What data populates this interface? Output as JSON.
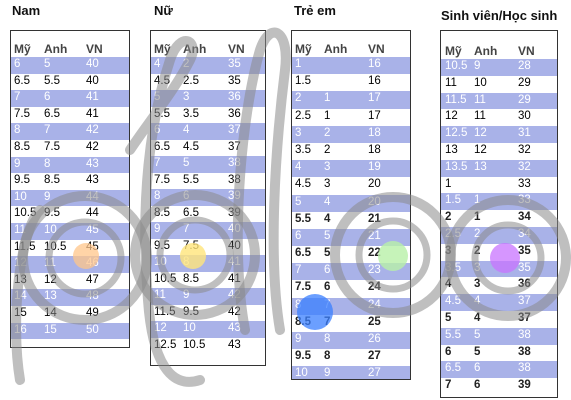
{
  "panels": [
    {
      "title": "Nam",
      "headers": [
        "Mỹ",
        "Anh",
        "VN"
      ],
      "rows": [
        [
          "6",
          "5",
          "40"
        ],
        [
          "6.5",
          "5.5",
          "40"
        ],
        [
          "7",
          "6",
          "41"
        ],
        [
          "7.5",
          "6.5",
          "41"
        ],
        [
          "8",
          "7",
          "42"
        ],
        [
          "8.5",
          "7.5",
          "42"
        ],
        [
          "9",
          "8",
          "43"
        ],
        [
          "9.5",
          "8.5",
          "43"
        ],
        [
          "10",
          "9",
          "44"
        ],
        [
          "10.5",
          "9.5",
          "44"
        ],
        [
          "11",
          "10",
          "45"
        ],
        [
          "11.5",
          "10.5",
          "45"
        ],
        [
          "12",
          "11",
          "46"
        ],
        [
          "13",
          "12",
          "47"
        ],
        [
          "14",
          "13",
          "48"
        ],
        [
          "15",
          "14",
          "49"
        ],
        [
          "16",
          "15",
          "50"
        ]
      ]
    },
    {
      "title": "Nữ",
      "headers": [
        "Mỹ",
        "Anh",
        "VN"
      ],
      "rows": [
        [
          "4",
          "2",
          "35"
        ],
        [
          "4.5",
          "2.5",
          "35"
        ],
        [
          "5",
          "3",
          "36"
        ],
        [
          "5.5",
          "3.5",
          "36"
        ],
        [
          "6",
          "4",
          "37"
        ],
        [
          "6.5",
          "4.5",
          "37"
        ],
        [
          "7",
          "5",
          "38"
        ],
        [
          "7.5",
          "5.5",
          "38"
        ],
        [
          "8",
          "6",
          "39"
        ],
        [
          "8.5",
          "6.5",
          "39"
        ],
        [
          "9",
          "7",
          "40"
        ],
        [
          "9.5",
          "7.5",
          "40"
        ],
        [
          "10",
          "8",
          "41"
        ],
        [
          "10.5",
          "8.5",
          "41"
        ],
        [
          "11",
          "9",
          "42"
        ],
        [
          "11.5",
          "9.5",
          "42"
        ],
        [
          "12",
          "10",
          "43"
        ],
        [
          "12.5",
          "10.5",
          "43"
        ]
      ]
    },
    {
      "title": "Trẻ em",
      "headers": [
        "Mỹ",
        "Anh",
        "VN"
      ],
      "rows": [
        [
          "1",
          "",
          "16"
        ],
        [
          "1.5",
          "",
          "16"
        ],
        [
          "2",
          "1",
          "17"
        ],
        [
          "2.5",
          "1",
          "17"
        ],
        [
          "3",
          "2",
          "18"
        ],
        [
          "3.5",
          "2",
          "18"
        ],
        [
          "4",
          "3",
          "19"
        ],
        [
          "4.5",
          "3",
          "20"
        ],
        [
          "5",
          "4",
          "20"
        ],
        [
          "5.5",
          "4",
          "21"
        ],
        [
          "6",
          "5",
          "21"
        ],
        [
          "6.5",
          "5",
          "22"
        ],
        [
          "7",
          "6",
          "23"
        ],
        [
          "7.5",
          "6",
          "24"
        ],
        [
          "8",
          "7",
          "24"
        ],
        [
          "8.5",
          "7",
          "25"
        ],
        [
          "9",
          "8",
          "26"
        ],
        [
          "9.5",
          "8",
          "27"
        ],
        [
          "10",
          "9",
          "27"
        ]
      ]
    },
    {
      "title": "Sinh viên/Học sinh",
      "headers": [
        "Mỹ",
        "Anh",
        "VN"
      ],
      "rows": [
        [
          "10.5",
          "9",
          "28"
        ],
        [
          "11",
          "10",
          "29"
        ],
        [
          "11.5",
          "11",
          "29"
        ],
        [
          "12",
          "11",
          "30"
        ],
        [
          "12.5",
          "12",
          "31"
        ],
        [
          "13",
          "12",
          "32"
        ],
        [
          "13.5",
          "13",
          "32"
        ],
        [
          "1",
          "",
          "33"
        ],
        [
          "1.5",
          "1",
          "33"
        ],
        [
          "2",
          "1",
          "34"
        ],
        [
          "2.5",
          "2",
          "34"
        ],
        [
          "3",
          "2",
          "35"
        ],
        [
          "3.5",
          "3",
          "35"
        ],
        [
          "4",
          "3",
          "36"
        ],
        [
          "4.5",
          "4",
          "37"
        ],
        [
          "5",
          "4",
          "37"
        ],
        [
          "5.5",
          "5",
          "38"
        ],
        [
          "6",
          "5",
          "38"
        ],
        [
          "6.5",
          "6",
          "38"
        ],
        [
          "7",
          "6",
          "39"
        ]
      ]
    }
  ]
}
